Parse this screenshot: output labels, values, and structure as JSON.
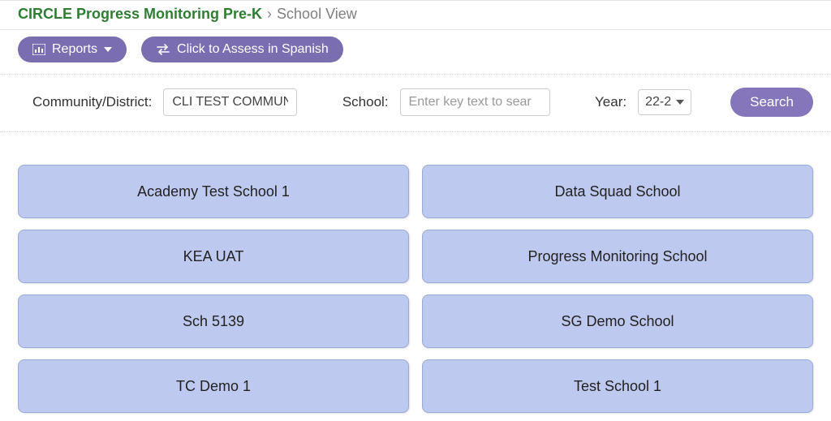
{
  "breadcrumb": {
    "main": "CIRCLE Progress Monitoring Pre-K",
    "chevron": "›",
    "sub": "School View"
  },
  "toolbar": {
    "reports_label": "Reports",
    "spanish_label": "Click to Assess in Spanish"
  },
  "filters": {
    "community_label": "Community/District:",
    "community_value": "CLI TEST COMMUNI",
    "school_label": "School:",
    "school_placeholder": "Enter key text to sear",
    "year_label": "Year:",
    "year_selected": "22-2",
    "search_label": "Search"
  },
  "tiles": [
    "Academy Test School 1",
    "Data Squad School",
    "KEA UAT",
    "Progress Monitoring School",
    "Sch 5139",
    "SG Demo School",
    "TC Demo 1",
    "Test School 1"
  ],
  "colors": {
    "pill": "#7a6db0",
    "search": "#8576bb",
    "tile_bg": "#bdc9ef",
    "tile_border": "#9aa9d9",
    "title_green": "#2e7d32"
  }
}
